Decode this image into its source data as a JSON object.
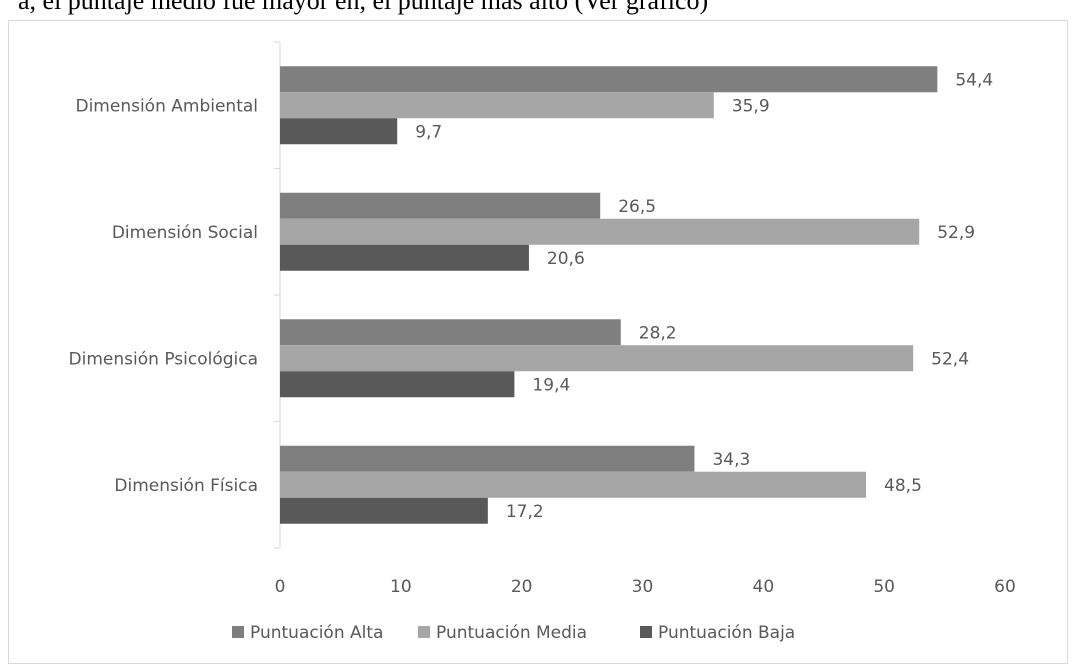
{
  "header_text": "a, el puntaje medio fue mayor en, el puntaje más alto (Ver gráfico)",
  "chart_data": {
    "type": "bar",
    "orientation": "horizontal",
    "categories": [
      "Dimensión Ambiental",
      "Dimensión Social",
      "Dimensión Psicológica",
      "Dimensión Física"
    ],
    "series": [
      {
        "name": "Puntuación Alta",
        "values": [
          54.4,
          26.5,
          28.2,
          34.3
        ],
        "value_labels": [
          "54,4",
          "26,5",
          "28,2",
          "34,3"
        ],
        "color": "#7f7f7f"
      },
      {
        "name": "Puntuación Media",
        "values": [
          35.9,
          52.9,
          52.4,
          48.5
        ],
        "value_labels": [
          "35,9",
          "52,9",
          "52,4",
          "48,5"
        ],
        "color": "#a6a6a6"
      },
      {
        "name": "Puntuación Baja",
        "values": [
          9.7,
          20.6,
          19.4,
          17.2
        ],
        "value_labels": [
          "9,7",
          "20,6",
          "19,4",
          "17,2"
        ],
        "color": "#595959"
      }
    ],
    "x_ticks": [
      "0",
      "10",
      "20",
      "30",
      "40",
      "50",
      "60"
    ],
    "xlim": [
      0,
      60
    ],
    "grid": false,
    "legend_position": "bottom"
  }
}
